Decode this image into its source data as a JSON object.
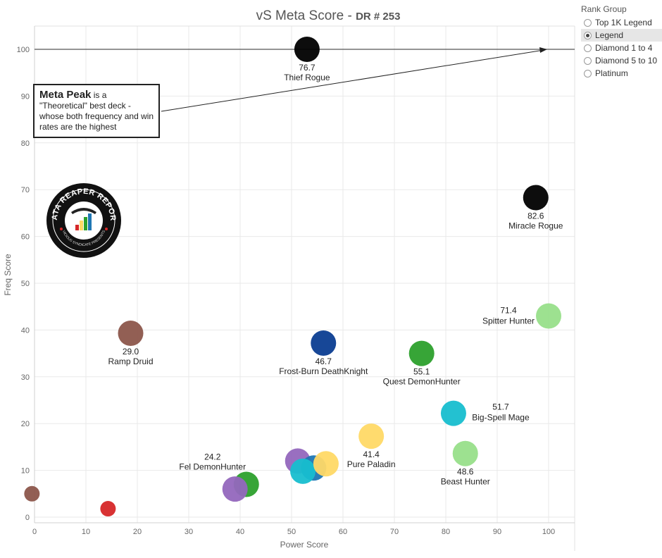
{
  "title": {
    "main": "vS Meta Score - ",
    "sub": "DR # 253"
  },
  "legend": {
    "title": "Rank Group",
    "items": [
      {
        "label": "Top 1K Legend",
        "selected": false
      },
      {
        "label": "Legend",
        "selected": true
      },
      {
        "label": "Diamond 1 to 4",
        "selected": false
      },
      {
        "label": "Diamond 5 to 10",
        "selected": false
      },
      {
        "label": "Platinum",
        "selected": false
      }
    ]
  },
  "callout": {
    "bold": "Meta Peak",
    "text": " is a \"Theoretical\" best deck - whose both frequency and win rates are the highest"
  },
  "logo": {
    "text_top": "DATA REAPER REPORT",
    "text_bottom": "VICIOUS SYNDICATE PRESENTS"
  },
  "colors": {
    "black": "#000000",
    "brown": "#8c564b",
    "navy": "#0b3d91",
    "green": "#2ca02c",
    "light_green": "#98df8a",
    "cyan": "#17becf",
    "yellow": "#ffd966",
    "purple": "#9467bd",
    "blue": "#1f77b4",
    "red": "#d62728"
  },
  "chart_data": {
    "type": "scatter",
    "title": "vS Meta Score - DR # 253",
    "xlabel": "Power Score",
    "ylabel": "Freq Score",
    "xlim": [
      0,
      105
    ],
    "ylim": [
      -1,
      105
    ],
    "x_ticks": [
      0,
      10,
      20,
      30,
      40,
      50,
      60,
      70,
      80,
      90,
      100
    ],
    "y_ticks": [
      0,
      10,
      20,
      30,
      40,
      50,
      60,
      70,
      80,
      90,
      100
    ],
    "grid": true,
    "reference_line_y": 100,
    "points": [
      {
        "name": "Thief Rogue",
        "score": "76.7",
        "x": 53.0,
        "y": 100.0,
        "color": "#000000",
        "label_pos": "below"
      },
      {
        "name": "Miracle Rogue",
        "score": "82.6",
        "x": 97.5,
        "y": 68.3,
        "color": "#000000",
        "label_pos": "below"
      },
      {
        "name": "Spitter Hunter",
        "score": "71.4",
        "x": 100.0,
        "y": 43.0,
        "color": "#98df8a",
        "label_pos": "left"
      },
      {
        "name": "Ramp Druid",
        "score": "29.0",
        "x": 18.7,
        "y": 39.3,
        "color": "#8c564b",
        "label_pos": "below"
      },
      {
        "name": "Frost-Burn DeathKnight",
        "score": "46.7",
        "x": 56.2,
        "y": 37.2,
        "color": "#0b3d91",
        "label_pos": "below"
      },
      {
        "name": "Quest DemonHunter",
        "score": "55.1",
        "x": 75.3,
        "y": 35.0,
        "color": "#2ca02c",
        "label_pos": "below"
      },
      {
        "name": "Big-Spell Mage",
        "score": "51.7",
        "x": 81.5,
        "y": 22.2,
        "color": "#17becf",
        "label_pos": "right"
      },
      {
        "name": "Pure Paladin",
        "score": "41.4",
        "x": 65.5,
        "y": 17.3,
        "color": "#ffd966",
        "label_pos": "below"
      },
      {
        "name": "Beast Hunter",
        "score": "48.6",
        "x": 83.8,
        "y": 13.6,
        "color": "#98df8a",
        "label_pos": "below"
      },
      {
        "name": "Fel DemonHunter",
        "score": "24.2",
        "x": 41.2,
        "y": 7.0,
        "color": "#2ca02c",
        "label_pos": "above-left"
      },
      {
        "name": "",
        "score": "",
        "x": 39.0,
        "y": 6.0,
        "color": "#9467bd",
        "label_pos": "none"
      },
      {
        "name": "",
        "score": "",
        "x": 51.2,
        "y": 12.0,
        "color": "#9467bd",
        "label_pos": "none"
      },
      {
        "name": "",
        "score": "",
        "x": 54.3,
        "y": 10.5,
        "color": "#1f77b4",
        "label_pos": "none"
      },
      {
        "name": "",
        "score": "",
        "x": 52.2,
        "y": 9.8,
        "color": "#17becf",
        "label_pos": "none"
      },
      {
        "name": "",
        "score": "",
        "x": 56.7,
        "y": 11.4,
        "color": "#ffd966",
        "label_pos": "none"
      },
      {
        "name": "",
        "score": "",
        "x": 14.3,
        "y": 1.8,
        "color": "#d62728",
        "label_pos": "none"
      },
      {
        "name": "",
        "score": "",
        "x": -0.5,
        "y": 5.0,
        "color": "#8c564b",
        "label_pos": "none"
      }
    ]
  }
}
